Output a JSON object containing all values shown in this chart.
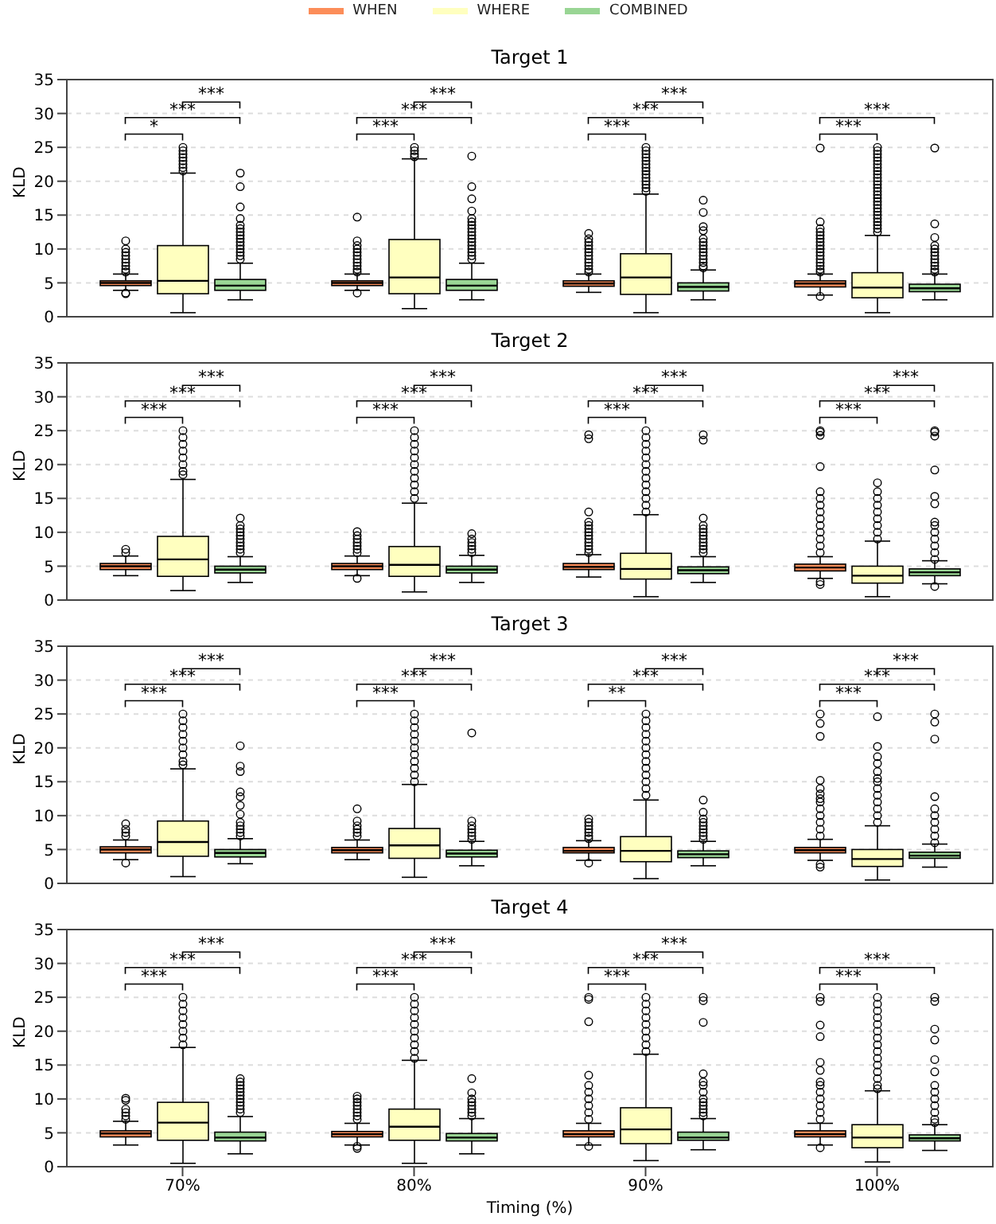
{
  "chart_data": [
    {
      "type": "box",
      "title": "Target 1",
      "ylabel": "KLD",
      "categories": [
        null,
        null,
        null,
        null
      ],
      "ylim": [
        0,
        35
      ],
      "yticks": [
        0,
        5,
        10,
        15,
        20,
        25,
        30,
        35
      ],
      "grid": "y",
      "legend": "top",
      "tick_labels": "y",
      "series": [
        {
          "name": "WHEN",
          "color": "#fc8d59",
          "boxes": [
            {
              "low": 3.9,
              "q1": 4.6,
              "median": 5.0,
              "q3": 5.3,
              "high": 6.3,
              "outliers": [
                3.4,
                3.5,
                6.6,
                7,
                7.5,
                8,
                8.5,
                9,
                9.5,
                10,
                11.2
              ]
            },
            {
              "low": 3.9,
              "q1": 4.6,
              "median": 5.0,
              "q3": 5.3,
              "high": 6.3,
              "outliers": [
                3.5,
                6.6,
                7,
                7.5,
                8,
                8.5,
                9,
                9.5,
                10,
                10.5,
                11.2,
                14.7
              ]
            },
            {
              "low": 3.6,
              "q1": 4.5,
              "median": 4.9,
              "q3": 5.3,
              "high": 6.3,
              "outliers": [
                6.6,
                7,
                7.5,
                8,
                8.5,
                9,
                9.5,
                10,
                10.5,
                11,
                11.5,
                12.3
              ]
            },
            {
              "low": 3.2,
              "q1": 4.4,
              "median": 4.9,
              "q3": 5.3,
              "high": 6.3,
              "outliers": [
                3.0,
                6.6,
                7,
                7.5,
                8,
                8.5,
                9,
                9.5,
                10,
                10.5,
                11,
                11.5,
                12,
                12.5,
                13,
                14,
                24.9
              ]
            }
          ]
        },
        {
          "name": "WHERE",
          "color": "#ffffbf",
          "boxes": [
            {
              "low": 0.6,
              "q1": 3.4,
              "median": 5.3,
              "q3": 10.5,
              "high": 21.2,
              "outliers": [
                21.5,
                22,
                22.5,
                23,
                23.5,
                24,
                24.5,
                25
              ]
            },
            {
              "low": 1.2,
              "q1": 3.4,
              "median": 5.8,
              "q3": 11.4,
              "high": 23.3,
              "outliers": [
                23.6,
                24,
                24.5,
                25
              ]
            },
            {
              "low": 0.6,
              "q1": 3.3,
              "median": 5.8,
              "q3": 9.3,
              "high": 18.1,
              "outliers": [
                18.5,
                19,
                19.5,
                20,
                20.5,
                21,
                21.5,
                22,
                22.5,
                23,
                23.5,
                24,
                24.5,
                25
              ]
            },
            {
              "low": 0.6,
              "q1": 2.8,
              "median": 4.3,
              "q3": 6.5,
              "high": 12.0,
              "outliers": [
                12.5,
                13,
                13.5,
                14,
                14.5,
                15,
                15.5,
                16,
                16.5,
                17,
                17.5,
                18,
                18.5,
                19,
                19.5,
                20,
                20.5,
                21,
                21.5,
                22,
                22.5,
                23,
                23.5,
                24,
                24.5,
                25
              ]
            }
          ]
        },
        {
          "name": "COMBINED",
          "color": "#99d594",
          "boxes": [
            {
              "low": 2.5,
              "q1": 3.9,
              "median": 4.6,
              "q3": 5.5,
              "high": 7.9,
              "outliers": [
                8.5,
                9,
                9.5,
                10,
                10.5,
                11,
                11.5,
                12,
                12.5,
                13,
                13.5,
                14.5,
                16.2,
                19.2,
                21.2
              ]
            },
            {
              "low": 2.5,
              "q1": 3.9,
              "median": 4.6,
              "q3": 5.5,
              "high": 7.9,
              "outliers": [
                8.5,
                9,
                9.5,
                10,
                10.5,
                11,
                11.5,
                12,
                12.5,
                13,
                13.5,
                14,
                14.5,
                15.6,
                17.4,
                19.2,
                23.7
              ]
            },
            {
              "low": 2.5,
              "q1": 3.8,
              "median": 4.4,
              "q3": 5.0,
              "high": 6.9,
              "outliers": [
                7.2,
                7.5,
                8,
                8.5,
                9,
                9.5,
                10,
                10.5,
                11,
                11.5,
                12.7,
                13.3,
                15.4,
                17.2
              ]
            },
            {
              "low": 2.5,
              "q1": 3.7,
              "median": 4.2,
              "q3": 4.8,
              "high": 6.3,
              "outliers": [
                6.6,
                7,
                7.5,
                8,
                8.5,
                9,
                9.5,
                10,
                10.5,
                11.7,
                13.7,
                24.9
              ]
            }
          ]
        }
      ],
      "annotations": [
        "*",
        "***",
        "***",
        "***",
        "***",
        "***",
        "***",
        "***",
        "***",
        "***",
        "***"
      ]
    },
    {
      "type": "box",
      "title": "Target 2",
      "ylabel": "KLD",
      "categories": [
        null,
        null,
        null,
        null
      ],
      "ylim": [
        0,
        35
      ],
      "yticks": [
        0,
        5,
        10,
        15,
        20,
        25,
        30,
        35
      ],
      "grid": "y",
      "tick_labels": "y",
      "series": [
        {
          "color": "#fc8d59",
          "boxes": [
            {
              "low": 3.6,
              "q1": 4.5,
              "median": 5.0,
              "q3": 5.4,
              "high": 6.5,
              "outliers": [
                7.0,
                7.5
              ]
            },
            {
              "low": 3.6,
              "q1": 4.5,
              "median": 5.0,
              "q3": 5.4,
              "high": 6.5,
              "outliers": [
                3.2,
                7,
                7.5,
                8,
                8.5,
                9,
                9.5,
                10.1
              ]
            },
            {
              "low": 3.4,
              "q1": 4.5,
              "median": 4.9,
              "q3": 5.4,
              "high": 6.7,
              "outliers": [
                7,
                7.5,
                8,
                8.5,
                9,
                9.5,
                10,
                10.5,
                11,
                11.5,
                13,
                23.8,
                24.4
              ]
            },
            {
              "low": 3.2,
              "q1": 4.3,
              "median": 4.8,
              "q3": 5.3,
              "high": 6.4,
              "outliers": [
                2.3,
                2.7,
                7,
                8,
                9,
                10,
                11,
                12,
                13,
                14,
                15,
                16,
                19.7,
                24.3,
                24.8,
                25
              ]
            }
          ]
        },
        {
          "color": "#ffffbf",
          "boxes": [
            {
              "low": 1.4,
              "q1": 3.5,
              "median": 6.0,
              "q3": 9.4,
              "high": 17.8,
              "outliers": [
                18.5,
                19,
                20,
                21,
                22,
                23,
                24,
                25
              ]
            },
            {
              "low": 1.2,
              "q1": 3.5,
              "median": 5.2,
              "q3": 7.9,
              "high": 14.3,
              "outliers": [
                15,
                16,
                17,
                18,
                19,
                20,
                21,
                22,
                23,
                24,
                25
              ]
            },
            {
              "low": 0.5,
              "q1": 3.1,
              "median": 4.6,
              "q3": 6.9,
              "high": 12.6,
              "outliers": [
                13,
                14,
                15,
                16,
                17,
                18,
                19,
                20,
                21,
                22,
                23,
                24,
                25
              ]
            },
            {
              "low": 0.5,
              "q1": 2.5,
              "median": 3.6,
              "q3": 5.0,
              "high": 8.7,
              "outliers": [
                9,
                10,
                11,
                12,
                13,
                14,
                15,
                16,
                17.3
              ]
            }
          ]
        },
        {
          "color": "#99d594",
          "boxes": [
            {
              "low": 2.6,
              "q1": 4.0,
              "median": 4.5,
              "q3": 5.0,
              "high": 6.4,
              "outliers": [
                7,
                7.5,
                8,
                8.5,
                9,
                9.5,
                10,
                10.5,
                11,
                12.1
              ]
            },
            {
              "low": 2.6,
              "q1": 4.0,
              "median": 4.5,
              "q3": 5.0,
              "high": 6.6,
              "outliers": [
                7,
                7.5,
                8,
                8.5,
                9,
                9.8
              ]
            },
            {
              "low": 2.6,
              "q1": 3.9,
              "median": 4.4,
              "q3": 4.9,
              "high": 6.4,
              "outliers": [
                7,
                7.5,
                8,
                8.5,
                9,
                9.5,
                10,
                10.5,
                11,
                12.1,
                23.6,
                24.4
              ]
            },
            {
              "low": 2.4,
              "q1": 3.6,
              "median": 4.1,
              "q3": 4.6,
              "high": 5.8,
              "outliers": [
                2.0,
                6,
                7,
                8,
                9,
                10,
                11,
                11.5,
                14.2,
                15.3,
                19.2,
                24.2,
                24.8,
                25
              ]
            }
          ]
        }
      ],
      "annotations": [
        "***",
        "***",
        "***",
        "***",
        "***",
        "***",
        "***",
        "***",
        "***",
        "***",
        "***",
        "***"
      ]
    },
    {
      "type": "box",
      "title": "Target 3",
      "ylabel": "KLD",
      "categories": [
        null,
        null,
        null,
        null
      ],
      "ylim": [
        0,
        35
      ],
      "yticks": [
        0,
        5,
        10,
        15,
        20,
        25,
        30,
        35
      ],
      "grid": "y",
      "tick_labels": "y",
      "series": [
        {
          "color": "#fc8d59",
          "boxes": [
            {
              "low": 3.5,
              "q1": 4.5,
              "median": 5.0,
              "q3": 5.4,
              "high": 6.4,
              "outliers": [
                3.0,
                7,
                7.5,
                8,
                8.8
              ]
            },
            {
              "low": 3.5,
              "q1": 4.5,
              "median": 4.9,
              "q3": 5.3,
              "high": 6.4,
              "outliers": [
                7,
                7.5,
                8,
                8.5,
                9.2,
                11.0
              ]
            },
            {
              "low": 3.4,
              "q1": 4.5,
              "median": 4.8,
              "q3": 5.3,
              "high": 6.3,
              "outliers": [
                3.0,
                6.6,
                7,
                7.5,
                8,
                8.5,
                9,
                9.5
              ]
            },
            {
              "low": 3.4,
              "q1": 4.5,
              "median": 4.9,
              "q3": 5.3,
              "high": 6.5,
              "outliers": [
                2.4,
                2.8,
                7,
                8,
                9,
                10,
                11,
                12,
                12.5,
                13.2,
                14,
                15.2,
                21.7,
                23.6,
                25
              ]
            }
          ]
        },
        {
          "color": "#ffffbf",
          "boxes": [
            {
              "low": 1.0,
              "q1": 4.0,
              "median": 6.1,
              "q3": 9.2,
              "high": 16.9,
              "outliers": [
                17.5,
                18,
                19,
                20,
                21,
                22,
                23,
                24,
                25
              ]
            },
            {
              "low": 0.9,
              "q1": 3.7,
              "median": 5.6,
              "q3": 8.1,
              "high": 14.6,
              "outliers": [
                15,
                16,
                17,
                18,
                19,
                20,
                21,
                22,
                23,
                24,
                25
              ]
            },
            {
              "low": 0.7,
              "q1": 3.2,
              "median": 4.8,
              "q3": 6.9,
              "high": 12.3,
              "outliers": [
                13,
                14,
                15,
                16,
                17,
                18,
                19,
                20,
                21,
                22,
                23,
                24,
                25
              ]
            },
            {
              "low": 0.5,
              "q1": 2.5,
              "median": 3.6,
              "q3": 5.0,
              "high": 8.5,
              "outliers": [
                9,
                10,
                11,
                12,
                13,
                14,
                15,
                15.5,
                16.5,
                17.7,
                18.7,
                20.2,
                24.6
              ]
            }
          ]
        },
        {
          "color": "#99d594",
          "boxes": [
            {
              "low": 2.9,
              "q1": 3.9,
              "median": 4.5,
              "q3": 5.0,
              "high": 6.6,
              "outliers": [
                7,
                7.5,
                8,
                8.5,
                9,
                10.2,
                11.5,
                12.8,
                13.5,
                16.5,
                17.3,
                20.3
              ]
            },
            {
              "low": 2.6,
              "q1": 3.9,
              "median": 4.4,
              "q3": 4.9,
              "high": 6.2,
              "outliers": [
                6.5,
                7,
                7.5,
                8,
                8.5,
                9.2,
                22.2
              ]
            },
            {
              "low": 2.6,
              "q1": 3.8,
              "median": 4.3,
              "q3": 4.8,
              "high": 6.2,
              "outliers": [
                6.5,
                7,
                7.5,
                8,
                8.5,
                9,
                9.5,
                10.5,
                12.3
              ]
            },
            {
              "low": 2.4,
              "q1": 3.7,
              "median": 4.1,
              "q3": 4.6,
              "high": 5.8,
              "outliers": [
                6,
                7,
                8,
                9,
                10,
                11,
                12.8,
                21.3,
                23.8,
                25
              ]
            }
          ]
        }
      ],
      "annotations": [
        "***",
        "***",
        "***",
        "***",
        "***",
        "***",
        "**",
        "***",
        "***",
        "***",
        "***",
        "***"
      ]
    },
    {
      "type": "box",
      "title": "Target 4",
      "xlabel": "Timing (%)",
      "ylabel": "KLD",
      "categories": [
        "70%",
        "80%",
        "90%",
        "100%"
      ],
      "ylim": [
        0,
        35
      ],
      "yticks": [
        0,
        5,
        10,
        15,
        20,
        25,
        30,
        35
      ],
      "grid": "y",
      "series": [
        {
          "color": "#fc8d59",
          "boxes": [
            {
              "low": 3.2,
              "q1": 4.4,
              "median": 4.9,
              "q3": 5.3,
              "high": 6.7,
              "outliers": [
                7,
                7.5,
                8,
                8.5,
                9.8,
                10.1
              ]
            },
            {
              "low": 3.2,
              "q1": 4.4,
              "median": 4.8,
              "q3": 5.2,
              "high": 6.4,
              "outliers": [
                2.7,
                3.0,
                7,
                7.5,
                8,
                8.5,
                9,
                9.5,
                10,
                10.4
              ]
            },
            {
              "low": 3.2,
              "q1": 4.4,
              "median": 4.8,
              "q3": 5.3,
              "high": 6.4,
              "outliers": [
                3.0,
                7,
                8,
                9,
                10,
                11,
                12,
                13.5,
                21.4,
                24.7,
                25
              ]
            },
            {
              "low": 3.2,
              "q1": 4.4,
              "median": 4.8,
              "q3": 5.3,
              "high": 6.4,
              "outliers": [
                2.8,
                7,
                8,
                9,
                10,
                11,
                12,
                12.5,
                14.2,
                15.4,
                19.2,
                20.9,
                24.4,
                25
              ]
            }
          ]
        },
        {
          "color": "#ffffbf",
          "boxes": [
            {
              "low": 0.5,
              "q1": 3.9,
              "median": 6.5,
              "q3": 9.5,
              "high": 17.6,
              "outliers": [
                18,
                19,
                20,
                21,
                22,
                23,
                24,
                25
              ]
            },
            {
              "low": 0.5,
              "q1": 3.9,
              "median": 5.9,
              "q3": 8.5,
              "high": 15.7,
              "outliers": [
                16,
                17,
                18,
                19,
                20,
                21,
                22,
                23,
                24,
                25
              ]
            },
            {
              "low": 0.9,
              "q1": 3.4,
              "median": 5.5,
              "q3": 8.7,
              "high": 16.6,
              "outliers": [
                17,
                18,
                19,
                20,
                21,
                22,
                23,
                24,
                25
              ]
            },
            {
              "low": 0.7,
              "q1": 2.8,
              "median": 4.3,
              "q3": 6.2,
              "high": 11.2,
              "outliers": [
                11.5,
                12,
                13,
                14,
                15,
                16,
                17,
                18,
                19,
                20,
                21,
                22,
                23,
                24,
                25
              ]
            }
          ]
        },
        {
          "color": "#99d594",
          "boxes": [
            {
              "low": 1.9,
              "q1": 3.8,
              "median": 4.3,
              "q3": 5.1,
              "high": 7.4,
              "outliers": [
                8,
                8.5,
                9,
                9.5,
                10,
                10.5,
                11,
                11.5,
                12,
                12.5,
                13
              ]
            },
            {
              "low": 1.9,
              "q1": 3.8,
              "median": 4.3,
              "q3": 4.9,
              "high": 7.1,
              "outliers": [
                7.5,
                8,
                8.5,
                9,
                9.5,
                10,
                10.9,
                13.0
              ]
            },
            {
              "low": 2.5,
              "q1": 3.9,
              "median": 4.3,
              "q3": 5.1,
              "high": 7.1,
              "outliers": [
                7.5,
                8,
                8.5,
                9,
                9.5,
                10,
                11,
                12,
                12.5,
                13.7,
                21.3,
                24.5,
                25
              ]
            },
            {
              "low": 2.4,
              "q1": 3.8,
              "median": 4.2,
              "q3": 4.7,
              "high": 6.2,
              "outliers": [
                6.5,
                7,
                8,
                9,
                10,
                11,
                12,
                14,
                15.8,
                18.7,
                20.3,
                24.4,
                25
              ]
            }
          ]
        }
      ],
      "annotations": [
        "***",
        "***",
        "***",
        "***",
        "***",
        "***",
        "***",
        "***",
        "***",
        "***",
        "***"
      ]
    }
  ]
}
